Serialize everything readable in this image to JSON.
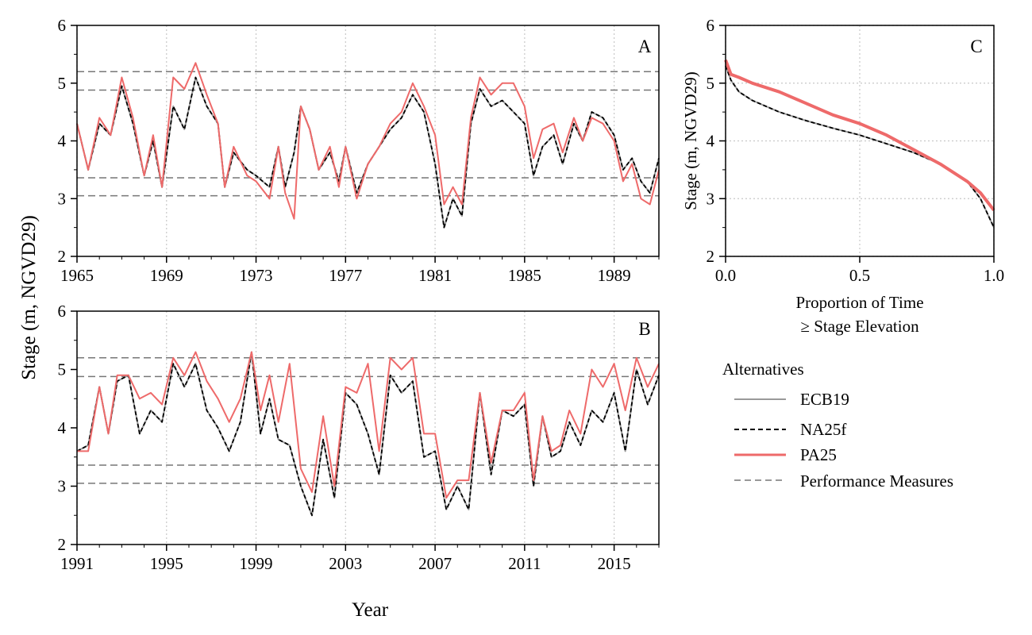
{
  "figure": {
    "ylabel_main": "Stage (m, NGVD29)",
    "xlabel_main": "Year"
  },
  "legend": {
    "title": "Alternatives",
    "entries": [
      {
        "label": "ECB19",
        "color": "#999999",
        "style": "solid"
      },
      {
        "label": "NA25f",
        "color": "#000000",
        "style": "dashed"
      },
      {
        "label": "PA25",
        "color": "#EE6A6A",
        "style": "solid"
      },
      {
        "label": "Performance Measures",
        "color": "#777777",
        "style": "dashed"
      }
    ]
  },
  "chart_data": [
    {
      "panel": "A",
      "type": "line",
      "xlabel": "",
      "ylabel": "",
      "xlim": [
        1965,
        1991
      ],
      "ylim": [
        2,
        6
      ],
      "xticks": [
        1965,
        1969,
        1973,
        1977,
        1981,
        1985,
        1989
      ],
      "yticks": [
        2,
        3,
        4,
        5,
        6
      ],
      "grid": true,
      "reference_lines": [
        5.2,
        4.88,
        3.36,
        3.05
      ],
      "series": [
        {
          "name": "ECB19",
          "x": [
            1965.0,
            1965.5,
            1966.0,
            1966.5,
            1967.0,
            1967.5,
            1968.0,
            1968.4,
            1968.8,
            1969.3,
            1969.8,
            1970.3,
            1970.8,
            1971.3,
            1971.6,
            1972.0,
            1972.6,
            1973.0,
            1973.6,
            1974.0,
            1974.3,
            1974.7,
            1975.0,
            1975.4,
            1975.8,
            1976.3,
            1976.7,
            1977.0,
            1977.5,
            1978.0,
            1978.5,
            1979.0,
            1979.5,
            1980.0,
            1980.5,
            1981.0,
            1981.4,
            1981.8,
            1982.2,
            1982.6,
            1983.0,
            1983.5,
            1984.0,
            1984.5,
            1985.0,
            1985.4,
            1985.8,
            1986.3,
            1986.7,
            1987.2,
            1987.6,
            1988.0,
            1988.5,
            1989.0,
            1989.4,
            1989.8,
            1990.2,
            1990.6,
            1991.0
          ],
          "y": [
            4.3,
            3.5,
            4.3,
            4.1,
            4.95,
            4.3,
            3.4,
            4.0,
            3.2,
            4.6,
            4.2,
            5.1,
            4.6,
            4.3,
            3.2,
            3.8,
            3.5,
            3.4,
            3.2,
            3.9,
            3.2,
            3.8,
            4.6,
            4.2,
            3.5,
            3.8,
            3.3,
            3.9,
            3.1,
            3.6,
            3.9,
            4.2,
            4.4,
            4.8,
            4.5,
            3.6,
            2.5,
            3.0,
            2.7,
            4.3,
            4.9,
            4.6,
            4.7,
            4.5,
            4.3,
            3.4,
            3.9,
            4.1,
            3.6,
            4.3,
            4.0,
            4.5,
            4.4,
            4.1,
            3.5,
            3.7,
            3.3,
            3.1,
            3.7
          ]
        },
        {
          "name": "NA25f",
          "x": [
            1965.0,
            1965.5,
            1966.0,
            1966.5,
            1967.0,
            1967.5,
            1968.0,
            1968.4,
            1968.8,
            1969.3,
            1969.8,
            1970.3,
            1970.8,
            1971.3,
            1971.6,
            1972.0,
            1972.6,
            1973.0,
            1973.6,
            1974.0,
            1974.3,
            1974.7,
            1975.0,
            1975.4,
            1975.8,
            1976.3,
            1976.7,
            1977.0,
            1977.5,
            1978.0,
            1978.5,
            1979.0,
            1979.5,
            1980.0,
            1980.5,
            1981.0,
            1981.4,
            1981.8,
            1982.2,
            1982.6,
            1983.0,
            1983.5,
            1984.0,
            1984.5,
            1985.0,
            1985.4,
            1985.8,
            1986.3,
            1986.7,
            1987.2,
            1987.6,
            1988.0,
            1988.5,
            1989.0,
            1989.4,
            1989.8,
            1990.2,
            1990.6,
            1991.0
          ],
          "y": [
            4.3,
            3.5,
            4.3,
            4.1,
            4.95,
            4.3,
            3.4,
            4.0,
            3.2,
            4.6,
            4.2,
            5.1,
            4.6,
            4.3,
            3.2,
            3.8,
            3.5,
            3.4,
            3.2,
            3.9,
            3.2,
            3.8,
            4.6,
            4.2,
            3.5,
            3.8,
            3.3,
            3.9,
            3.1,
            3.6,
            3.9,
            4.2,
            4.4,
            4.8,
            4.5,
            3.6,
            2.5,
            3.0,
            2.7,
            4.3,
            4.9,
            4.6,
            4.7,
            4.5,
            4.3,
            3.4,
            3.9,
            4.1,
            3.6,
            4.3,
            4.0,
            4.5,
            4.4,
            4.1,
            3.5,
            3.7,
            3.3,
            3.1,
            3.7
          ]
        },
        {
          "name": "PA25",
          "x": [
            1965.0,
            1965.5,
            1966.0,
            1966.5,
            1967.0,
            1967.5,
            1968.0,
            1968.4,
            1968.8,
            1969.3,
            1969.8,
            1970.3,
            1970.8,
            1971.3,
            1971.6,
            1972.0,
            1972.6,
            1973.0,
            1973.6,
            1974.0,
            1974.3,
            1974.7,
            1975.0,
            1975.4,
            1975.8,
            1976.3,
            1976.7,
            1977.0,
            1977.5,
            1978.0,
            1978.5,
            1979.0,
            1979.5,
            1980.0,
            1980.5,
            1981.0,
            1981.4,
            1981.8,
            1982.2,
            1982.6,
            1983.0,
            1983.5,
            1984.0,
            1984.5,
            1985.0,
            1985.4,
            1985.8,
            1986.3,
            1986.7,
            1987.2,
            1987.6,
            1988.0,
            1988.5,
            1989.0,
            1989.4,
            1989.8,
            1990.2,
            1990.6,
            1991.0
          ],
          "y": [
            4.3,
            3.5,
            4.4,
            4.1,
            5.1,
            4.4,
            3.4,
            4.1,
            3.2,
            5.1,
            4.9,
            5.35,
            4.8,
            4.3,
            3.2,
            3.9,
            3.4,
            3.3,
            3.0,
            3.9,
            3.1,
            2.65,
            4.6,
            4.2,
            3.5,
            3.9,
            3.2,
            3.9,
            3.0,
            3.6,
            3.9,
            4.3,
            4.5,
            5.0,
            4.6,
            4.1,
            2.9,
            3.2,
            2.9,
            4.4,
            5.1,
            4.8,
            5.0,
            5.0,
            4.6,
            3.7,
            4.2,
            4.3,
            3.8,
            4.4,
            4.0,
            4.4,
            4.3,
            4.0,
            3.3,
            3.6,
            3.0,
            2.9,
            3.5
          ]
        }
      ]
    },
    {
      "panel": "B",
      "type": "line",
      "xlabel": "Year",
      "ylabel": "",
      "xlim": [
        1991,
        2017
      ],
      "ylim": [
        2,
        6
      ],
      "xticks": [
        1991,
        1995,
        1999,
        2003,
        2007,
        2011,
        2015
      ],
      "yticks": [
        2,
        3,
        4,
        5,
        6
      ],
      "grid": true,
      "reference_lines": [
        5.2,
        4.88,
        3.36,
        3.05
      ],
      "series": [
        {
          "name": "ECB19",
          "x": [
            1991.0,
            1991.5,
            1992.0,
            1992.4,
            1992.8,
            1993.3,
            1993.8,
            1994.3,
            1994.8,
            1995.3,
            1995.8,
            1996.3,
            1996.8,
            1997.3,
            1997.8,
            1998.3,
            1998.8,
            1999.2,
            1999.6,
            2000.0,
            2000.5,
            2001.0,
            2001.5,
            2002.0,
            2002.5,
            2003.0,
            2003.5,
            2004.0,
            2004.5,
            2005.0,
            2005.5,
            2006.0,
            2006.5,
            2007.0,
            2007.5,
            2008.0,
            2008.5,
            2009.0,
            2009.5,
            2010.0,
            2010.5,
            2011.0,
            2011.4,
            2011.8,
            2012.2,
            2012.6,
            2013.0,
            2013.5,
            2014.0,
            2014.5,
            2015.0,
            2015.5,
            2016.0,
            2016.5,
            2017.0
          ],
          "y": [
            3.6,
            3.7,
            4.7,
            3.9,
            4.8,
            4.9,
            3.9,
            4.3,
            4.1,
            5.1,
            4.7,
            5.1,
            4.3,
            4.0,
            3.6,
            4.1,
            5.3,
            3.9,
            4.5,
            3.8,
            3.7,
            3.0,
            2.5,
            3.8,
            2.8,
            4.6,
            4.4,
            3.9,
            3.2,
            4.9,
            4.6,
            4.8,
            3.5,
            3.6,
            2.6,
            3.0,
            2.6,
            4.6,
            3.2,
            4.3,
            4.2,
            4.4,
            3.0,
            4.2,
            3.5,
            3.6,
            4.1,
            3.7,
            4.3,
            4.1,
            4.6,
            3.6,
            5.0,
            4.4,
            4.9
          ]
        },
        {
          "name": "NA25f",
          "x": [
            1991.0,
            1991.5,
            1992.0,
            1992.4,
            1992.8,
            1993.3,
            1993.8,
            1994.3,
            1994.8,
            1995.3,
            1995.8,
            1996.3,
            1996.8,
            1997.3,
            1997.8,
            1998.3,
            1998.8,
            1999.2,
            1999.6,
            2000.0,
            2000.5,
            2001.0,
            2001.5,
            2002.0,
            2002.5,
            2003.0,
            2003.5,
            2004.0,
            2004.5,
            2005.0,
            2005.5,
            2006.0,
            2006.5,
            2007.0,
            2007.5,
            2008.0,
            2008.5,
            2009.0,
            2009.5,
            2010.0,
            2010.5,
            2011.0,
            2011.4,
            2011.8,
            2012.2,
            2012.6,
            2013.0,
            2013.5,
            2014.0,
            2014.5,
            2015.0,
            2015.5,
            2016.0,
            2016.5,
            2017.0
          ],
          "y": [
            3.6,
            3.7,
            4.7,
            3.9,
            4.8,
            4.9,
            3.9,
            4.3,
            4.1,
            5.1,
            4.7,
            5.1,
            4.3,
            4.0,
            3.6,
            4.1,
            5.3,
            3.9,
            4.5,
            3.8,
            3.7,
            3.0,
            2.5,
            3.8,
            2.8,
            4.6,
            4.4,
            3.9,
            3.2,
            4.9,
            4.6,
            4.8,
            3.5,
            3.6,
            2.6,
            3.0,
            2.6,
            4.6,
            3.2,
            4.3,
            4.2,
            4.4,
            3.0,
            4.2,
            3.5,
            3.6,
            4.1,
            3.7,
            4.3,
            4.1,
            4.6,
            3.6,
            5.0,
            4.4,
            4.9
          ]
        },
        {
          "name": "PA25",
          "x": [
            1991.0,
            1991.5,
            1992.0,
            1992.4,
            1992.8,
            1993.3,
            1993.8,
            1994.3,
            1994.8,
            1995.3,
            1995.8,
            1996.3,
            1996.8,
            1997.3,
            1997.8,
            1998.3,
            1998.8,
            1999.2,
            1999.6,
            2000.0,
            2000.5,
            2001.0,
            2001.5,
            2002.0,
            2002.5,
            2003.0,
            2003.5,
            2004.0,
            2004.5,
            2005.0,
            2005.5,
            2006.0,
            2006.5,
            2007.0,
            2007.5,
            2008.0,
            2008.5,
            2009.0,
            2009.5,
            2010.0,
            2010.5,
            2011.0,
            2011.4,
            2011.8,
            2012.2,
            2012.6,
            2013.0,
            2013.5,
            2014.0,
            2014.5,
            2015.0,
            2015.5,
            2016.0,
            2016.5,
            2017.0
          ],
          "y": [
            3.6,
            3.6,
            4.7,
            3.9,
            4.9,
            4.9,
            4.5,
            4.6,
            4.4,
            5.2,
            4.9,
            5.3,
            4.8,
            4.5,
            4.1,
            4.5,
            5.3,
            4.3,
            4.9,
            4.1,
            5.1,
            3.3,
            2.9,
            4.2,
            3.0,
            4.7,
            4.6,
            5.1,
            3.6,
            5.2,
            5.0,
            5.2,
            3.9,
            3.9,
            2.8,
            3.1,
            3.1,
            4.6,
            3.4,
            4.3,
            4.3,
            4.6,
            3.1,
            4.2,
            3.6,
            3.7,
            4.3,
            3.9,
            5.0,
            4.7,
            5.1,
            4.3,
            5.2,
            4.7,
            5.1
          ]
        }
      ]
    },
    {
      "panel": "C",
      "type": "line",
      "xlabel": "Proportion of Time ≥ Stage Elevation",
      "ylabel": "Stage (m, NGVD29)",
      "xlim": [
        0,
        1
      ],
      "ylim": [
        2,
        6
      ],
      "xticks": [
        0.0,
        0.5,
        1.0
      ],
      "yticks": [
        2,
        3,
        4,
        5,
        6
      ],
      "grid": true,
      "series": [
        {
          "name": "ECB19",
          "x": [
            0.0,
            0.02,
            0.05,
            0.1,
            0.2,
            0.3,
            0.4,
            0.5,
            0.6,
            0.7,
            0.8,
            0.9,
            0.95,
            1.0
          ],
          "y": [
            5.3,
            5.05,
            4.85,
            4.7,
            4.5,
            4.35,
            4.22,
            4.1,
            3.95,
            3.8,
            3.6,
            3.3,
            3.0,
            2.5
          ]
        },
        {
          "name": "NA25f",
          "x": [
            0.0,
            0.02,
            0.05,
            0.1,
            0.2,
            0.3,
            0.4,
            0.5,
            0.6,
            0.7,
            0.8,
            0.9,
            0.95,
            1.0
          ],
          "y": [
            5.3,
            5.05,
            4.85,
            4.7,
            4.5,
            4.35,
            4.22,
            4.1,
            3.95,
            3.8,
            3.6,
            3.3,
            3.0,
            2.5
          ]
        },
        {
          "name": "PA25",
          "x": [
            0.0,
            0.02,
            0.05,
            0.1,
            0.2,
            0.3,
            0.4,
            0.5,
            0.6,
            0.7,
            0.8,
            0.9,
            0.95,
            1.0
          ],
          "y": [
            5.4,
            5.15,
            5.1,
            5.0,
            4.85,
            4.65,
            4.45,
            4.3,
            4.1,
            3.85,
            3.6,
            3.3,
            3.1,
            2.8
          ]
        }
      ]
    }
  ]
}
